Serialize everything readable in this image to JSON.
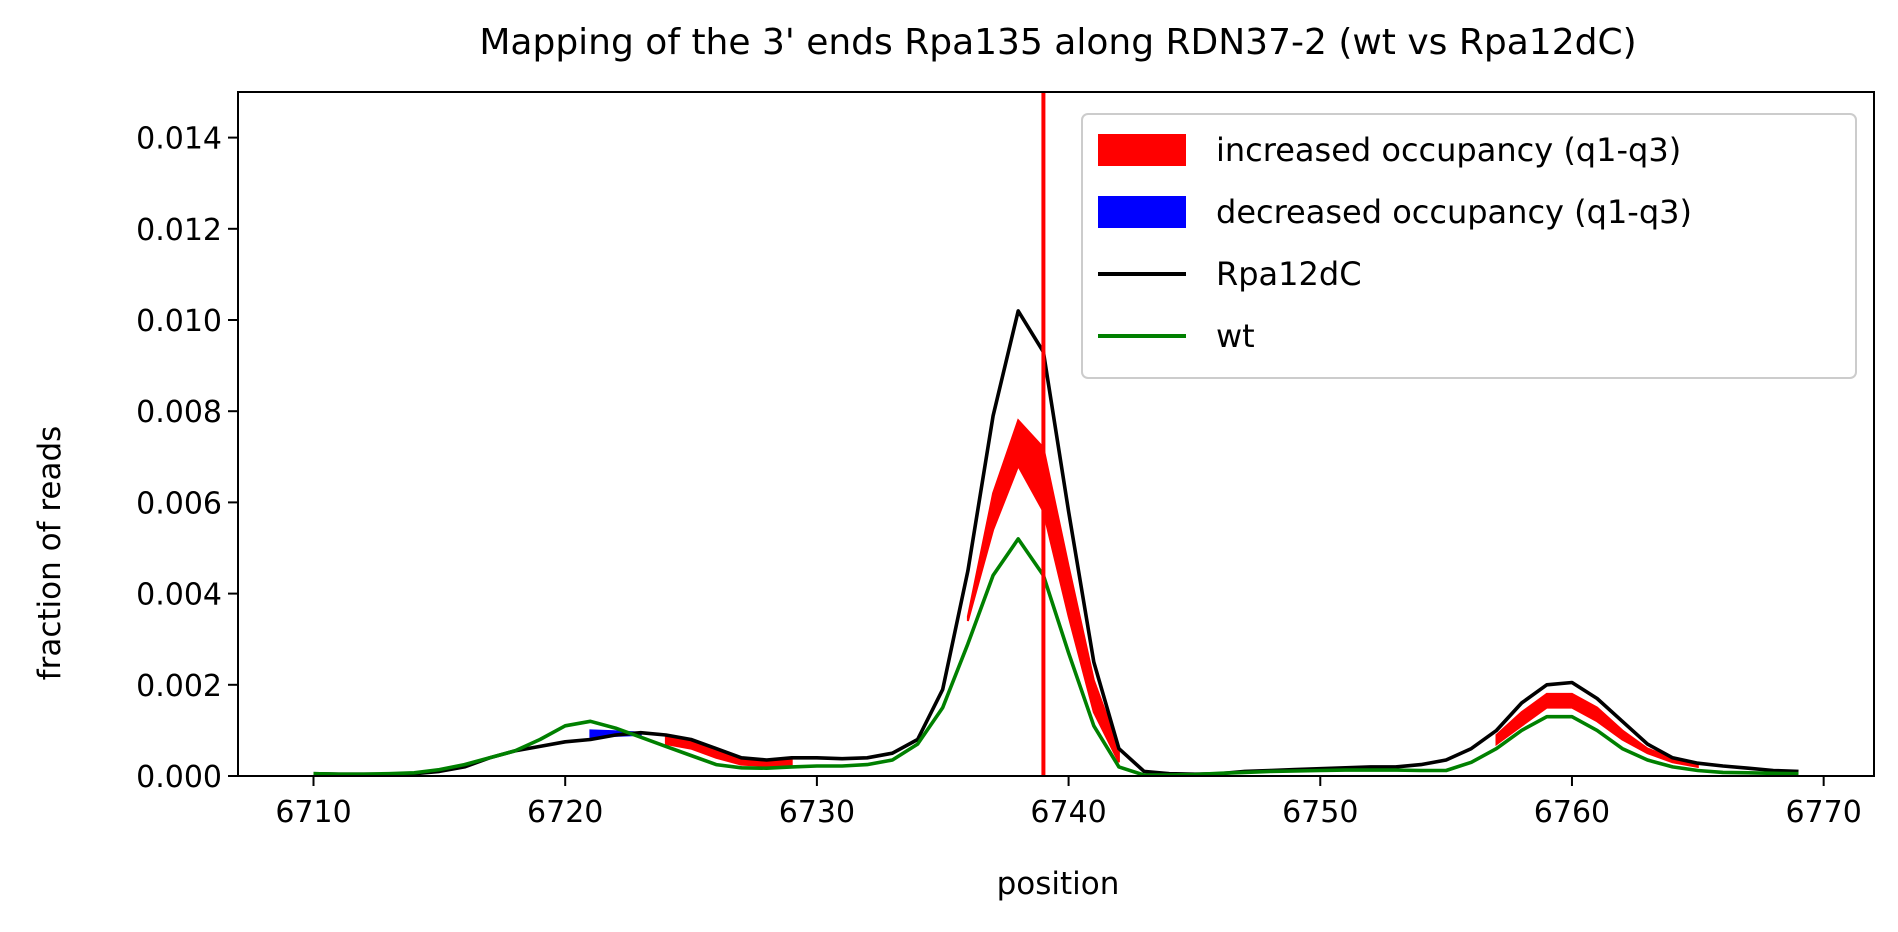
{
  "chart_data": {
    "type": "line",
    "title": "Mapping of the 3' ends Rpa135 along RDN37-2 (wt vs Rpa12dC)",
    "xlabel": "position",
    "ylabel": "fraction of reads",
    "xlim": [
      6707,
      6772
    ],
    "ylim": [
      0,
      0.015
    ],
    "xticks": [
      6710,
      6720,
      6730,
      6740,
      6750,
      6760,
      6770
    ],
    "xtick_labels": [
      "6710",
      "6720",
      "6730",
      "6740",
      "6750",
      "6760",
      "6770"
    ],
    "yticks": [
      0,
      0.002,
      0.004,
      0.006,
      0.008,
      0.01,
      0.012,
      0.014
    ],
    "ytick_labels": [
      "0.000",
      "0.002",
      "0.004",
      "0.006",
      "0.008",
      "0.010",
      "0.012",
      "0.014"
    ],
    "grid": false,
    "legend_position": "upper right",
    "vline": {
      "x": 6739,
      "color": "#ff0000"
    },
    "legend": [
      {
        "label": "increased occupancy (q1-q3)",
        "kind": "patch",
        "color": "#ff0000"
      },
      {
        "label": "decreased occupancy (q1-q3)",
        "kind": "patch",
        "color": "#0000ff"
      },
      {
        "label": "Rpa12dC",
        "kind": "line",
        "color": "#000000"
      },
      {
        "label": "wt",
        "kind": "line",
        "color": "#008000"
      }
    ],
    "series": [
      {
        "name": "Rpa12dC",
        "color": "#000000",
        "x": [
          6710,
          6711,
          6712,
          6713,
          6714,
          6715,
          6716,
          6717,
          6718,
          6719,
          6720,
          6721,
          6722,
          6723,
          6724,
          6725,
          6726,
          6727,
          6728,
          6729,
          6730,
          6731,
          6732,
          6733,
          6734,
          6735,
          6736,
          6737,
          6738,
          6739,
          6740,
          6741,
          6742,
          6743,
          6744,
          6745,
          6746,
          6747,
          6748,
          6749,
          6750,
          6751,
          6752,
          6753,
          6754,
          6755,
          6756,
          6757,
          6758,
          6759,
          6760,
          6761,
          6762,
          6763,
          6764,
          6765,
          6766,
          6767,
          6768,
          6769
        ],
        "y": [
          5e-05,
          4e-05,
          4e-05,
          4e-05,
          5e-05,
          0.0001,
          0.0002,
          0.0004,
          0.00055,
          0.00065,
          0.00075,
          0.0008,
          0.0009,
          0.00095,
          0.0009,
          0.0008,
          0.0006,
          0.0004,
          0.00035,
          0.0004,
          0.0004,
          0.00038,
          0.0004,
          0.0005,
          0.0008,
          0.0019,
          0.0045,
          0.0079,
          0.0102,
          0.0093,
          0.0058,
          0.0025,
          0.0006,
          0.0001,
          5e-05,
          4e-05,
          5e-05,
          0.0001,
          0.00012,
          0.00014,
          0.00016,
          0.00018,
          0.0002,
          0.0002,
          0.00025,
          0.00035,
          0.0006,
          0.001,
          0.0016,
          0.002,
          0.00205,
          0.0017,
          0.0012,
          0.0007,
          0.0004,
          0.00028,
          0.00022,
          0.00017,
          0.00012,
          0.0001
        ]
      },
      {
        "name": "wt",
        "color": "#008000",
        "x": [
          6710,
          6711,
          6712,
          6713,
          6714,
          6715,
          6716,
          6717,
          6718,
          6719,
          6720,
          6721,
          6722,
          6723,
          6724,
          6725,
          6726,
          6727,
          6728,
          6729,
          6730,
          6731,
          6732,
          6733,
          6734,
          6735,
          6736,
          6737,
          6738,
          6739,
          6740,
          6741,
          6742,
          6743,
          6744,
          6745,
          6746,
          6747,
          6748,
          6749,
          6750,
          6751,
          6752,
          6753,
          6754,
          6755,
          6756,
          6757,
          6758,
          6759,
          6760,
          6761,
          6762,
          6763,
          6764,
          6765,
          6766,
          6767,
          6768,
          6769
        ],
        "y": [
          5e-05,
          4e-05,
          4e-05,
          5e-05,
          7e-05,
          0.00014,
          0.00025,
          0.0004,
          0.00055,
          0.0008,
          0.0011,
          0.0012,
          0.00105,
          0.00085,
          0.00065,
          0.00045,
          0.00025,
          0.00018,
          0.00017,
          0.0002,
          0.00022,
          0.00022,
          0.00025,
          0.00035,
          0.0007,
          0.0015,
          0.0029,
          0.0044,
          0.0052,
          0.0044,
          0.0027,
          0.0011,
          0.0002,
          2e-05,
          2e-05,
          3e-05,
          6e-05,
          8e-05,
          0.0001,
          0.00011,
          0.00012,
          0.00013,
          0.00013,
          0.00013,
          0.00012,
          0.00012,
          0.0003,
          0.0006,
          0.001,
          0.0013,
          0.0013,
          0.001,
          0.0006,
          0.00035,
          0.0002,
          0.00012,
          8e-05,
          7e-05,
          6e-05,
          5e-05
        ]
      }
    ],
    "bands": [
      {
        "name": "increased occupancy (q1-q3)",
        "color": "#ff0000",
        "segments": [
          {
            "x": [
              6724,
              6725,
              6726,
              6727,
              6728,
              6729
            ],
            "low": [
              0.0007,
              0.0006,
              0.0004,
              0.00025,
              0.00022,
              0.00025
            ],
            "high": [
              0.0009,
              0.0008,
              0.00055,
              0.00035,
              0.0003,
              0.00035
            ]
          },
          {
            "x": [
              6736,
              6737,
              6738,
              6739,
              6740,
              6741,
              6742
            ],
            "low": [
              0.0034,
              0.0054,
              0.0068,
              0.0058,
              0.0035,
              0.0014,
              0.0003
            ],
            "high": [
              0.0035,
              0.0062,
              0.0078,
              0.0072,
              0.0046,
              0.0021,
              0.0006
            ]
          },
          {
            "x": [
              6757,
              6758,
              6759,
              6760,
              6761,
              6762,
              6763,
              6764,
              6765
            ],
            "low": [
              0.0007,
              0.0011,
              0.0015,
              0.0015,
              0.0012,
              0.0008,
              0.0005,
              0.0003,
              0.0002
            ],
            "high": [
              0.0009,
              0.0014,
              0.0018,
              0.0018,
              0.0015,
              0.001,
              0.0006,
              0.0004,
              0.00025
            ]
          }
        ]
      },
      {
        "name": "decreased occupancy (q1-q3)",
        "color": "#0000ff",
        "segments": [
          {
            "x": [
              6721,
              6722,
              6723
            ],
            "low": [
              0.00085,
              0.00088,
              0.0009
            ],
            "high": [
              0.001,
              0.00098,
              0.00095
            ]
          }
        ]
      }
    ]
  }
}
